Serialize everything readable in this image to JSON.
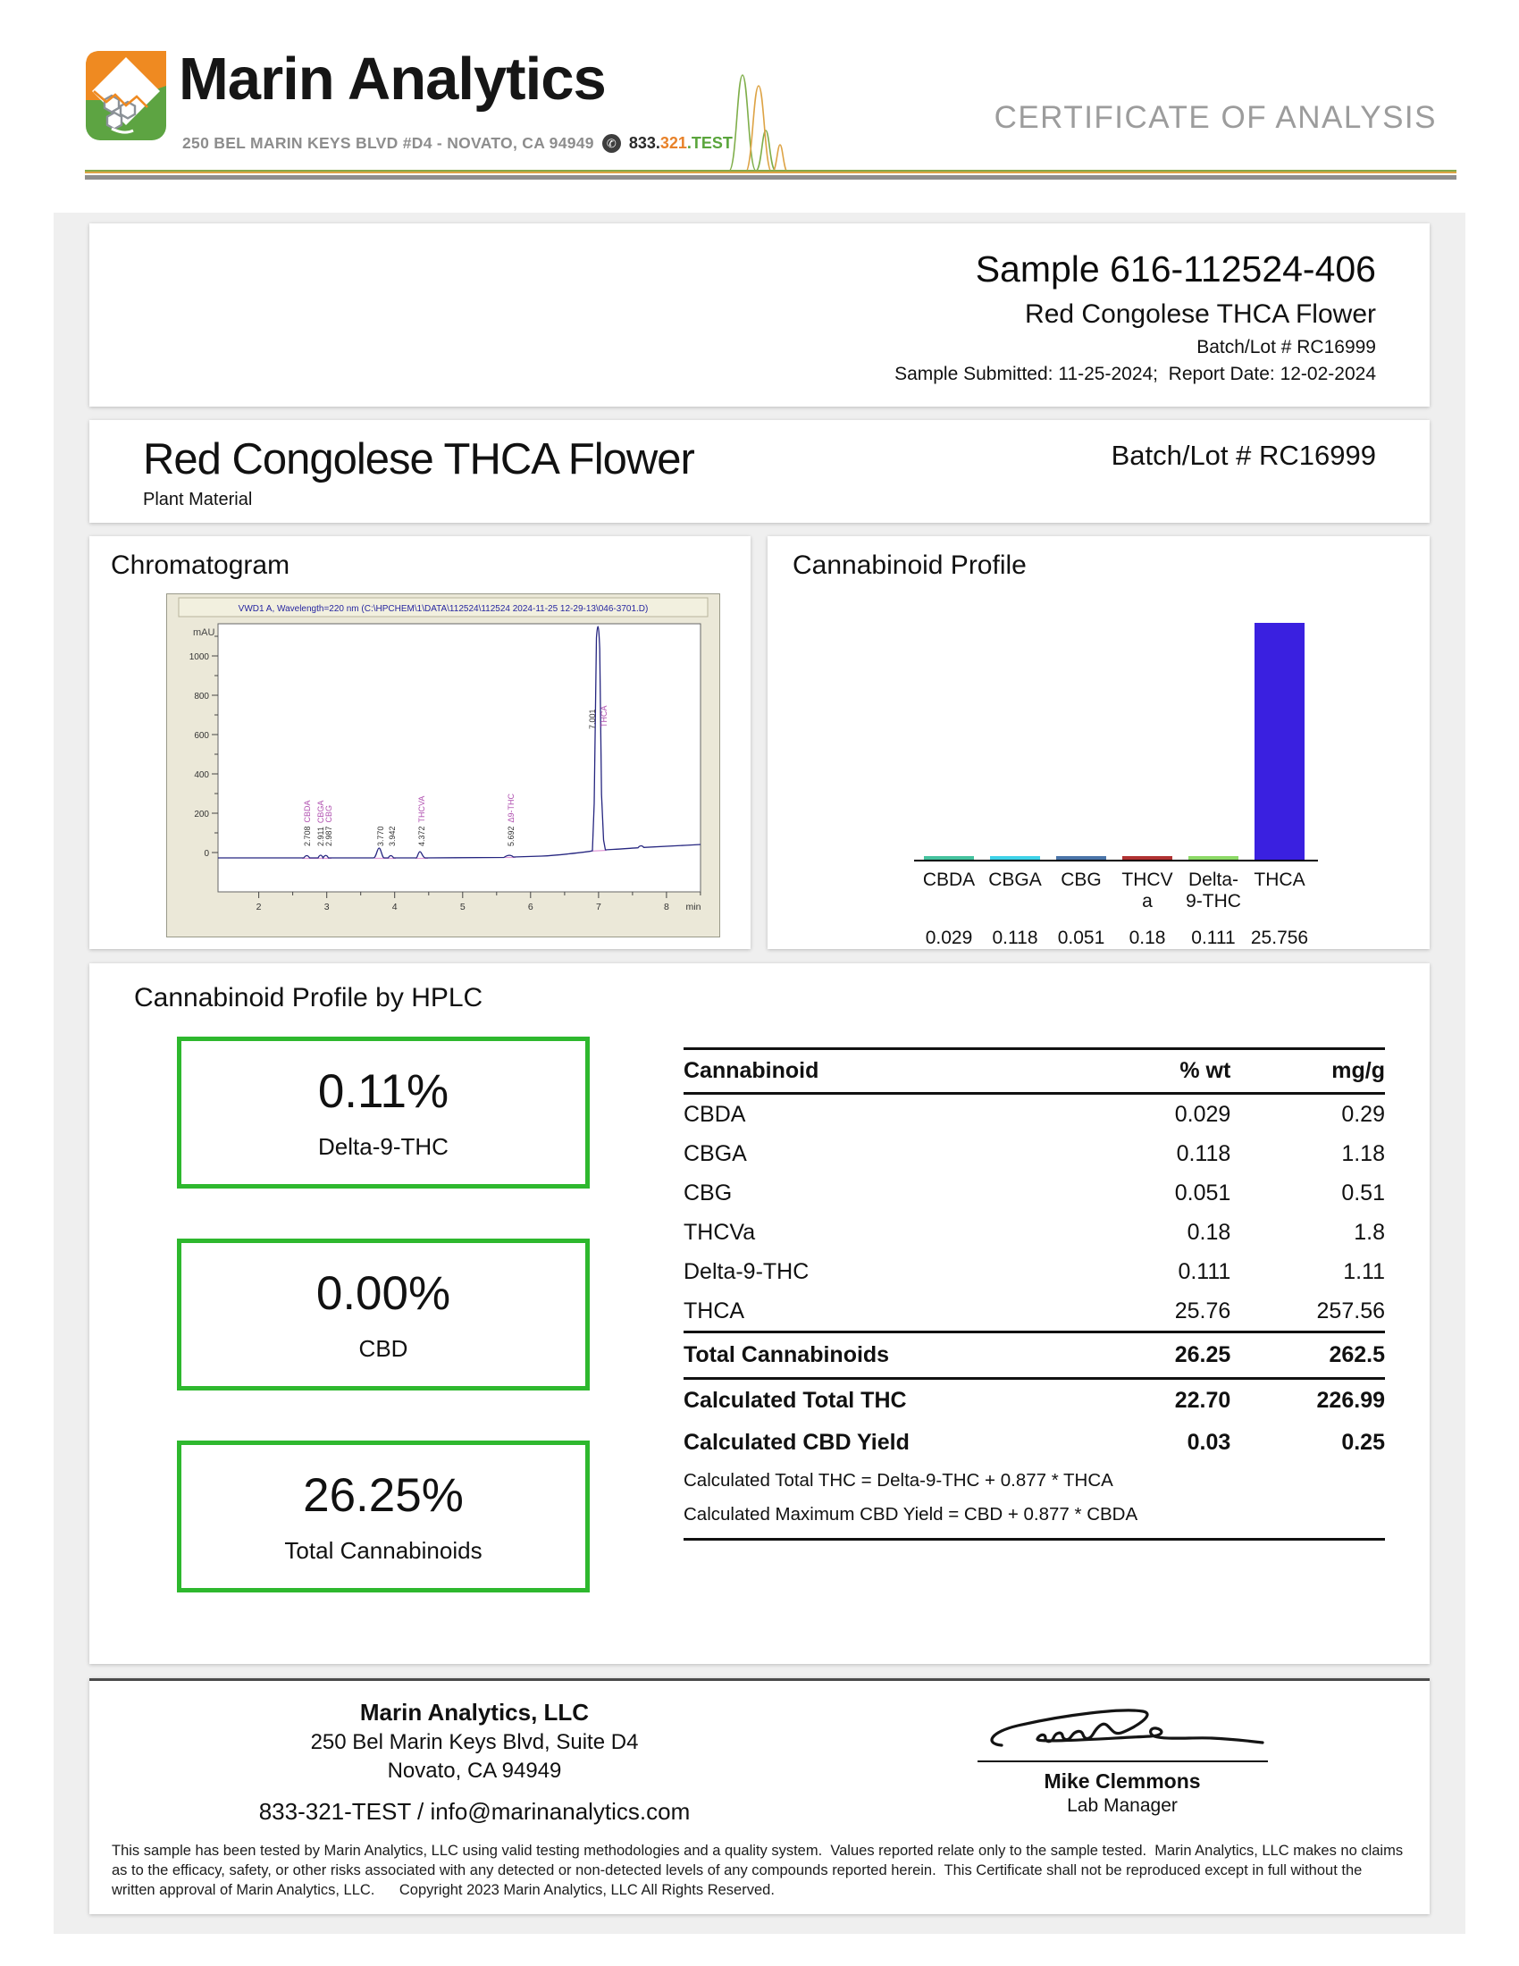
{
  "header": {
    "brand": "Marin Analytics",
    "address": "250 BEL MARIN KEYS BLVD #D4 - NOVATO, CA 94949",
    "phone_p1": "833.",
    "phone_p2": "321",
    "phone_p3": ".TEST",
    "phone_icon_glyph": "✆",
    "doc_title": "CERTIFICATE OF ANALYSIS"
  },
  "sample": {
    "title": "Sample 616-112524-406",
    "product": "Red Congolese THCA Flower",
    "batch": "Batch/Lot # RC16999",
    "dates": "Sample Submitted: 11-25-2024;  Report Date: 12-02-2024"
  },
  "product_band": {
    "name": "Red Congolese THCA Flower",
    "material_type": "Plant Material",
    "batch": "Batch/Lot # RC16999"
  },
  "chromatogram": {
    "section_title": "Chromatogram",
    "instrument_line": "VWD1 A, Wavelength=220 nm (C:\\HPCHEM\\1\\DATA\\112524\\112524 2024-11-25 12-29-13\\046-3701.D)",
    "y_unit": "mAU",
    "x_unit": "min",
    "y_ticks": [
      "1000",
      "800",
      "600",
      "400",
      "200",
      "0"
    ],
    "x_ticks": [
      "2",
      "3",
      "4",
      "5",
      "6",
      "7",
      "8"
    ],
    "peaks": [
      {
        "rt": "2.708",
        "name": "CBDA"
      },
      {
        "rt": "2.911",
        "name": "CBGA"
      },
      {
        "rt": "2.987",
        "name": "CBG"
      },
      {
        "rt": "3.770",
        "name": ""
      },
      {
        "rt": "3.942",
        "name": ""
      },
      {
        "rt": "4.372",
        "name": "THCVA"
      },
      {
        "rt": "5.692",
        "name": "Δ9-THC"
      },
      {
        "rt": "7.001",
        "name": "THCA"
      }
    ]
  },
  "profile_chart": {
    "section_title": "Cannabinoid Profile",
    "bars": [
      {
        "label": "CBDA",
        "value": 0.029,
        "value_text": "0.029",
        "color": "#45c29e"
      },
      {
        "label": "CBGA",
        "value": 0.118,
        "value_text": "0.118",
        "color": "#3ed2e8"
      },
      {
        "label": "CBG",
        "value": 0.051,
        "value_text": "0.051",
        "color": "#4a74a8"
      },
      {
        "label": "THCV\na",
        "value": 0.18,
        "value_text": "0.18",
        "color": "#b03232"
      },
      {
        "label": "Delta-\n9-THC",
        "value": 0.111,
        "value_text": "0.111",
        "color": "#8cd966"
      },
      {
        "label": "THCA",
        "value": 25.756,
        "value_text": "25.756",
        "color": "#3a20e0"
      }
    ]
  },
  "chart_data": [
    {
      "type": "bar",
      "title": "Cannabinoid Profile",
      "categories": [
        "CBDA",
        "CBGA",
        "CBG",
        "THCVa",
        "Delta-9-THC",
        "THCA"
      ],
      "values": [
        0.029,
        0.118,
        0.051,
        0.18,
        0.111,
        25.756
      ],
      "bar_colors": [
        "#45c29e",
        "#3ed2e8",
        "#4a74a8",
        "#b03232",
        "#8cd966",
        "#3a20e0"
      ],
      "xlabel": "",
      "ylabel": "",
      "ylim": [
        0,
        25.756
      ],
      "grid": false,
      "legend": "none",
      "value_labels_below_axis": true
    },
    {
      "type": "line",
      "title": "VWD1 A, Wavelength=220 nm (C:\\HPCHEM\\1\\DATA\\112524\\112524 2024-11-25 12-29-13\\046-3701.D)",
      "xlabel": "min",
      "ylabel": "mAU",
      "xlim": [
        1.4,
        8.5
      ],
      "ylim": [
        -60,
        1180
      ],
      "x_ticks": [
        2,
        3,
        4,
        5,
        6,
        7,
        8
      ],
      "y_ticks": [
        0,
        200,
        400,
        600,
        800,
        1000
      ],
      "peaks": [
        {
          "rt": 2.708,
          "label": "CBDA"
        },
        {
          "rt": 2.911,
          "label": "CBGA"
        },
        {
          "rt": 2.987,
          "label": "CBG"
        },
        {
          "rt": 3.77,
          "label": ""
        },
        {
          "rt": 3.942,
          "label": ""
        },
        {
          "rt": 4.372,
          "label": "THCVA"
        },
        {
          "rt": 5.692,
          "label": "Δ9-THC"
        },
        {
          "rt": 7.001,
          "label": "THCA",
          "apex_mAU": 1150
        }
      ]
    }
  ],
  "hplc": {
    "section_title": "Cannabinoid Profile by HPLC",
    "highlights": [
      {
        "value": "0.11%",
        "label": "Delta-9-THC"
      },
      {
        "value": "0.00%",
        "label": "CBD"
      },
      {
        "value": "26.25%",
        "label": "Total Cannabinoids"
      }
    ],
    "table": {
      "headers": [
        "Cannabinoid",
        "% wt",
        "mg/g"
      ],
      "rows": [
        [
          "CBDA",
          "0.029",
          "0.29"
        ],
        [
          "CBGA",
          "0.118",
          "1.18"
        ],
        [
          "CBG",
          "0.051",
          "0.51"
        ],
        [
          "THCVa",
          "0.18",
          "1.8"
        ],
        [
          "Delta-9-THC",
          "0.111",
          "1.11"
        ],
        [
          "THCA",
          "25.76",
          "257.56"
        ]
      ],
      "total": [
        "Total Cannabinoids",
        "26.25",
        "262.5"
      ],
      "calculated": [
        [
          "Calculated Total THC",
          "22.70",
          "226.99"
        ],
        [
          "Calculated CBD Yield",
          "0.03",
          "0.25"
        ]
      ],
      "formulas": [
        "Calculated Total THC = Delta-9-THC + 0.877 * THCA",
        "Calculated Maximum CBD Yield = CBD + 0.877 * CBDA"
      ]
    }
  },
  "footer": {
    "company": "Marin Analytics, LLC",
    "address1": "250 Bel Marin Keys Blvd, Suite D4",
    "address2": "Novato, CA 94949",
    "contact": "833-321-TEST / info@marinanalytics.com",
    "signer": "Mike Clemmons",
    "signer_title": "Lab Manager",
    "disclaimer": "This sample has been tested by Marin Analytics, LLC using valid testing methodologies and a quality system.  Values reported relate only to the sample tested.  Marin Analytics, LLC makes no claims as to the efficacy, safety, or other risks associated with any detected or non-detected levels of any compounds reported herein.  This Certificate shall not be reproduced except in full without the written approval of Marin Analytics, LLC.      Copyright 2023 Marin Analytics, LLC All Rights Reserved."
  }
}
